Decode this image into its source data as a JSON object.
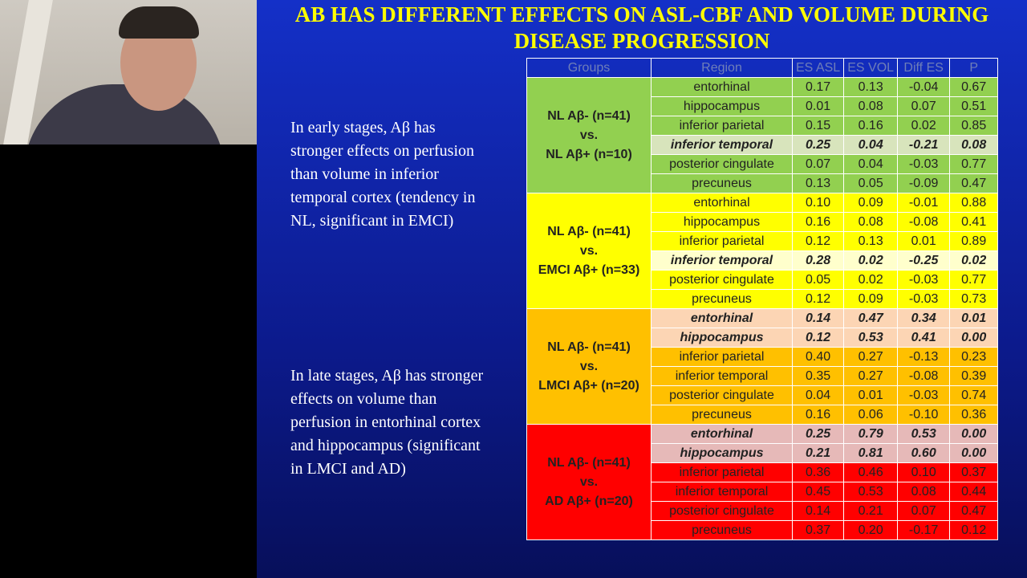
{
  "slide": {
    "title": "AB HAS DIFFERENT EFFECTS ON ASL-CBF AND VOLUME DURING DISEASE PROGRESSION",
    "paragraphs": [
      "In early stages, Aβ has stronger effects on perfusion than volume in inferior temporal cortex (tendency in NL, significant in EMCI)",
      "In late stages, Aβ has stronger effects on volume than perfusion in entorhinal cortex and hippocampus (significant in LMCI and AD)"
    ]
  },
  "table": {
    "header": [
      "Groups",
      "Region",
      "ES ASL",
      "ES VOL",
      "Diff ES",
      "P"
    ],
    "groups": [
      {
        "label": [
          "NL Aβ- (n=41)",
          "vs.",
          "NL Aβ+ (n=10)"
        ],
        "color": "#92d050",
        "highlight_color": "#d8e4bc",
        "rows": [
          {
            "cells": [
              "entorhinal",
              "0.17",
              "0.13",
              "-0.04",
              "0.67"
            ],
            "highlight": false
          },
          {
            "cells": [
              "hippocampus",
              "0.01",
              "0.08",
              "0.07",
              "0.51"
            ],
            "highlight": false
          },
          {
            "cells": [
              "inferior parietal",
              "0.15",
              "0.16",
              "0.02",
              "0.85"
            ],
            "highlight": false
          },
          {
            "cells": [
              "inferior temporal",
              "0.25",
              "0.04",
              "-0.21",
              "0.08"
            ],
            "highlight": true
          },
          {
            "cells": [
              "posterior cingulate",
              "0.07",
              "0.04",
              "-0.03",
              "0.77"
            ],
            "highlight": false
          },
          {
            "cells": [
              "precuneus",
              "0.13",
              "0.05",
              "-0.09",
              "0.47"
            ],
            "highlight": false
          }
        ]
      },
      {
        "label": [
          "NL Aβ- (n=41)",
          "vs.",
          "EMCI Aβ+ (n=33)"
        ],
        "color": "#ffff00",
        "highlight_color": "#ffffcc",
        "rows": [
          {
            "cells": [
              "entorhinal",
              "0.10",
              "0.09",
              "-0.01",
              "0.88"
            ],
            "highlight": false
          },
          {
            "cells": [
              "hippocampus",
              "0.16",
              "0.08",
              "-0.08",
              "0.41"
            ],
            "highlight": false
          },
          {
            "cells": [
              "inferior parietal",
              "0.12",
              "0.13",
              "0.01",
              "0.89"
            ],
            "highlight": false
          },
          {
            "cells": [
              "inferior temporal",
              "0.28",
              "0.02",
              "-0.25",
              "0.02"
            ],
            "highlight": true
          },
          {
            "cells": [
              "posterior cingulate",
              "0.05",
              "0.02",
              "-0.03",
              "0.77"
            ],
            "highlight": false
          },
          {
            "cells": [
              "precuneus",
              "0.12",
              "0.09",
              "-0.03",
              "0.73"
            ],
            "highlight": false
          }
        ]
      },
      {
        "label": [
          "NL Aβ- (n=41)",
          "vs.",
          "LMCI Aβ+ (n=20)"
        ],
        "color": "#ffc000",
        "highlight_color": "#fcd5b4",
        "rows": [
          {
            "cells": [
              "entorhinal",
              "0.14",
              "0.47",
              "0.34",
              "0.01"
            ],
            "highlight": true
          },
          {
            "cells": [
              "hippocampus",
              "0.12",
              "0.53",
              "0.41",
              "0.00"
            ],
            "highlight": true
          },
          {
            "cells": [
              "inferior parietal",
              "0.40",
              "0.27",
              "-0.13",
              "0.23"
            ],
            "highlight": false
          },
          {
            "cells": [
              "inferior temporal",
              "0.35",
              "0.27",
              "-0.08",
              "0.39"
            ],
            "highlight": false
          },
          {
            "cells": [
              "posterior cingulate",
              "0.04",
              "0.01",
              "-0.03",
              "0.74"
            ],
            "highlight": false
          },
          {
            "cells": [
              "precuneus",
              "0.16",
              "0.06",
              "-0.10",
              "0.36"
            ],
            "highlight": false
          }
        ]
      },
      {
        "label": [
          "NL Aβ- (n=41)",
          "vs.",
          "AD Aβ+ (n=20)"
        ],
        "color": "#ff0000",
        "highlight_color": "#e6b9b8",
        "rows": [
          {
            "cells": [
              "entorhinal",
              "0.25",
              "0.79",
              "0.53",
              "0.00"
            ],
            "highlight": true
          },
          {
            "cells": [
              "hippocampus",
              "0.21",
              "0.81",
              "0.60",
              "0.00"
            ],
            "highlight": true
          },
          {
            "cells": [
              "inferior parietal",
              "0.36",
              "0.46",
              "0.10",
              "0.37"
            ],
            "highlight": false
          },
          {
            "cells": [
              "inferior temporal",
              "0.45",
              "0.53",
              "0.08",
              "0.44"
            ],
            "highlight": false
          },
          {
            "cells": [
              "posterior cingulate",
              "0.14",
              "0.21",
              "0.07",
              "0.47"
            ],
            "highlight": false
          },
          {
            "cells": [
              "precuneus",
              "0.37",
              "0.20",
              "-0.17",
              "0.12"
            ],
            "highlight": false
          }
        ]
      }
    ]
  }
}
